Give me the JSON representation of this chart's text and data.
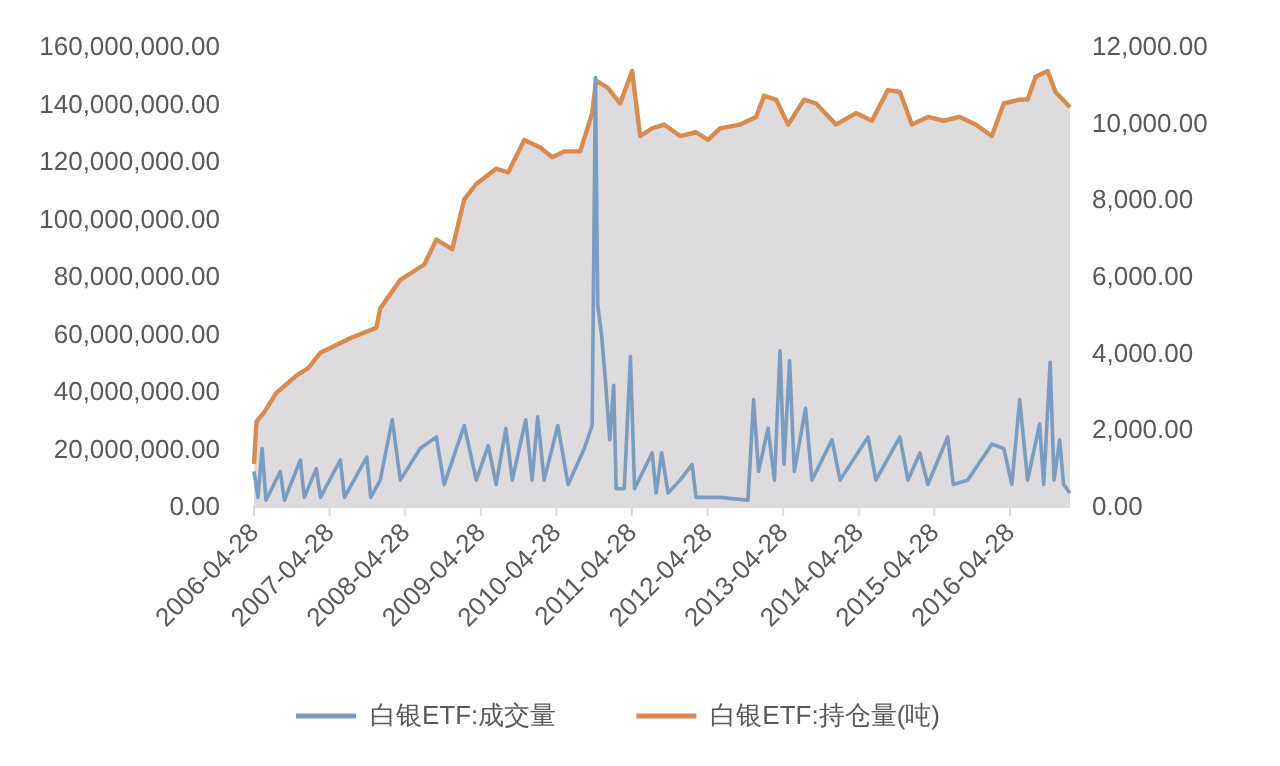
{
  "chart_data": {
    "type": "line",
    "legend": "bottom",
    "xlim": [
      "2006-04-28",
      "2017-02-12"
    ],
    "xticks": [
      "2006-04-28",
      "2007-04-28",
      "2008-04-28",
      "2009-04-28",
      "2010-04-28",
      "2011-04-28",
      "2012-04-28",
      "2013-04-28",
      "2014-04-28",
      "2015-04-28",
      "2016-04-28"
    ],
    "ylim": [
      0,
      160000000
    ],
    "yticks": [
      {
        "value": 0,
        "label": "0.00"
      },
      {
        "value": 20000000,
        "label": "20,000,000.00"
      },
      {
        "value": 40000000,
        "label": "40,000,000.00"
      },
      {
        "value": 60000000,
        "label": "60,000,000.00"
      },
      {
        "value": 80000000,
        "label": "80,000,000.00"
      },
      {
        "value": 100000000,
        "label": "100,000,000.00"
      },
      {
        "value": 120000000,
        "label": "120,000,000.00"
      },
      {
        "value": 140000000,
        "label": "140,000,000.00"
      },
      {
        "value": 160000000,
        "label": "160,000,000.00"
      }
    ],
    "y2lim": [
      0,
      12000
    ],
    "y2ticks": [
      {
        "value": 0,
        "label": "0.00"
      },
      {
        "value": 2000,
        "label": "2,000.00"
      },
      {
        "value": 4000,
        "label": "4,000.00"
      },
      {
        "value": 6000,
        "label": "6,000.00"
      },
      {
        "value": 8000,
        "label": "8,000.00"
      },
      {
        "value": 10000,
        "label": "10,000.00"
      },
      {
        "value": 12000,
        "label": "12,000.00"
      }
    ],
    "series": [
      {
        "name": "白银ETF:持仓量(吨)",
        "type": "area",
        "axis": "y2",
        "color": "#d98a4e",
        "x": [
          "2006-04-28",
          "2006-05-10",
          "2006-06-17",
          "2006-08-14",
          "2006-11-19",
          "2007-01-16",
          "2007-03-15",
          "2007-05-31",
          "2007-08-16",
          "2007-12-10",
          "2007-12-29",
          "2008-04-04",
          "2008-07-29",
          "2008-09-25",
          "2008-12-11",
          "2009-02-07",
          "2009-04-06",
          "2009-07-11",
          "2009-09-07",
          "2009-11-24",
          "2010-02-09",
          "2010-04-08",
          "2010-06-05",
          "2010-08-21",
          "2010-10-18",
          "2010-11-06",
          "2011-01-03",
          "2011-03-02",
          "2011-04-29",
          "2011-06-07",
          "2011-08-04",
          "2011-10-01",
          "2011-12-17",
          "2012-03-03",
          "2012-04-30",
          "2012-06-27",
          "2012-10-02",
          "2012-12-18",
          "2013-01-26",
          "2013-03-25",
          "2013-05-22",
          "2013-08-07",
          "2013-10-04",
          "2014-01-08",
          "2014-04-15",
          "2014-07-01",
          "2014-09-16",
          "2014-11-13",
          "2015-01-10",
          "2015-03-28",
          "2015-06-13",
          "2015-08-29",
          "2015-11-14",
          "2016-01-31",
          "2016-03-29",
          "2016-06-14",
          "2016-07-22",
          "2016-08-30",
          "2016-10-27",
          "2016-12-04",
          "2017-02-12"
        ],
        "values": [
          1100,
          2200,
          2450,
          2950,
          3400,
          3600,
          4000,
          4200,
          4400,
          4650,
          5150,
          5900,
          6300,
          6950,
          6700,
          8000,
          8400,
          8800,
          8700,
          9550,
          9350,
          9100,
          9250,
          9250,
          10250,
          11100,
          10900,
          10500,
          11350,
          9650,
          9850,
          9950,
          9650,
          9750,
          9550,
          9850,
          9950,
          10150,
          10700,
          10600,
          9950,
          10600,
          10500,
          9950,
          10250,
          10050,
          10850,
          10800,
          9950,
          10150,
          10050,
          10150,
          9950,
          9650,
          10500,
          10600,
          10600,
          11200,
          11350,
          10800,
          10400
        ]
      },
      {
        "name": "白银ETF:成交量",
        "color": "#7b9cc1",
        "x": [
          "2006-04-28",
          "2006-05-17",
          "2006-06-06",
          "2006-06-25",
          "2006-09-02",
          "2006-09-22",
          "2006-12-08",
          "2006-12-27",
          "2007-02-23",
          "2007-03-15",
          "2007-06-19",
          "2007-07-09",
          "2007-10-25",
          "2007-11-13",
          "2007-12-29",
          "2008-02-25",
          "2008-04-04",
          "2008-07-09",
          "2008-09-25",
          "2008-11-02",
          "2009-02-07",
          "2009-04-06",
          "2009-06-03",
          "2009-07-11",
          "2009-08-27",
          "2009-09-27",
          "2009-12-01",
          "2010-01-01",
          "2010-01-28",
          "2010-02-28",
          "2010-05-05",
          "2010-06-24",
          "2010-09-10",
          "2010-10-18",
          "2010-11-03",
          "2010-11-14",
          "2010-12-03",
          "2010-12-23",
          "2011-01-11",
          "2011-01-30",
          "2011-02-11",
          "2011-03-22",
          "2011-04-21",
          "2011-05-11",
          "2011-08-04",
          "2011-08-23",
          "2011-09-19",
          "2011-10-20",
          "2011-12-17",
          "2012-02-13",
          "2012-03-03",
          "2012-06-27",
          "2012-11-09",
          "2012-12-06",
          "2012-12-30",
          "2013-02-14",
          "2013-03-17",
          "2013-04-13",
          "2013-05-02",
          "2013-05-29",
          "2013-06-21",
          "2013-08-14",
          "2013-09-14",
          "2013-12-20",
          "2014-01-28",
          "2014-06-12",
          "2014-07-20",
          "2014-11-13",
          "2014-12-22",
          "2015-02-18",
          "2015-03-28",
          "2015-07-02",
          "2015-07-29",
          "2015-10-07",
          "2016-01-31",
          "2016-03-29",
          "2016-05-07",
          "2016-06-14",
          "2016-07-22",
          "2016-09-18",
          "2016-10-08",
          "2016-11-08",
          "2016-11-27",
          "2016-12-24",
          "2017-01-12",
          "2017-02-12"
        ],
        "values": [
          12000000,
          3000000,
          20000000,
          2000000,
          12000000,
          2000000,
          16000000,
          3000000,
          13000000,
          3000000,
          16000000,
          3000000,
          17000000,
          3000000,
          9000000,
          30000000,
          9000000,
          20000000,
          24000000,
          7500000,
          28000000,
          9000000,
          21000000,
          7500000,
          27000000,
          9000000,
          30000000,
          9000000,
          31000000,
          9000000,
          28000000,
          7500000,
          20000000,
          28000000,
          149000000,
          70000000,
          59000000,
          42000000,
          23000000,
          42000000,
          6000000,
          6000000,
          52000000,
          6000000,
          18500000,
          4500000,
          18500000,
          4500000,
          9000000,
          14500000,
          3000000,
          3000000,
          2000000,
          37000000,
          12000000,
          27000000,
          9000000,
          54000000,
          14500000,
          50500000,
          12000000,
          34000000,
          9000000,
          23000000,
          9000000,
          24000000,
          9000000,
          24000000,
          9000000,
          18500000,
          7500000,
          24000000,
          7500000,
          9000000,
          21500000,
          20000000,
          7500000,
          37000000,
          9000000,
          28500000,
          7500000,
          50000000,
          9000000,
          23000000,
          7500000,
          4500000
        ]
      }
    ]
  }
}
